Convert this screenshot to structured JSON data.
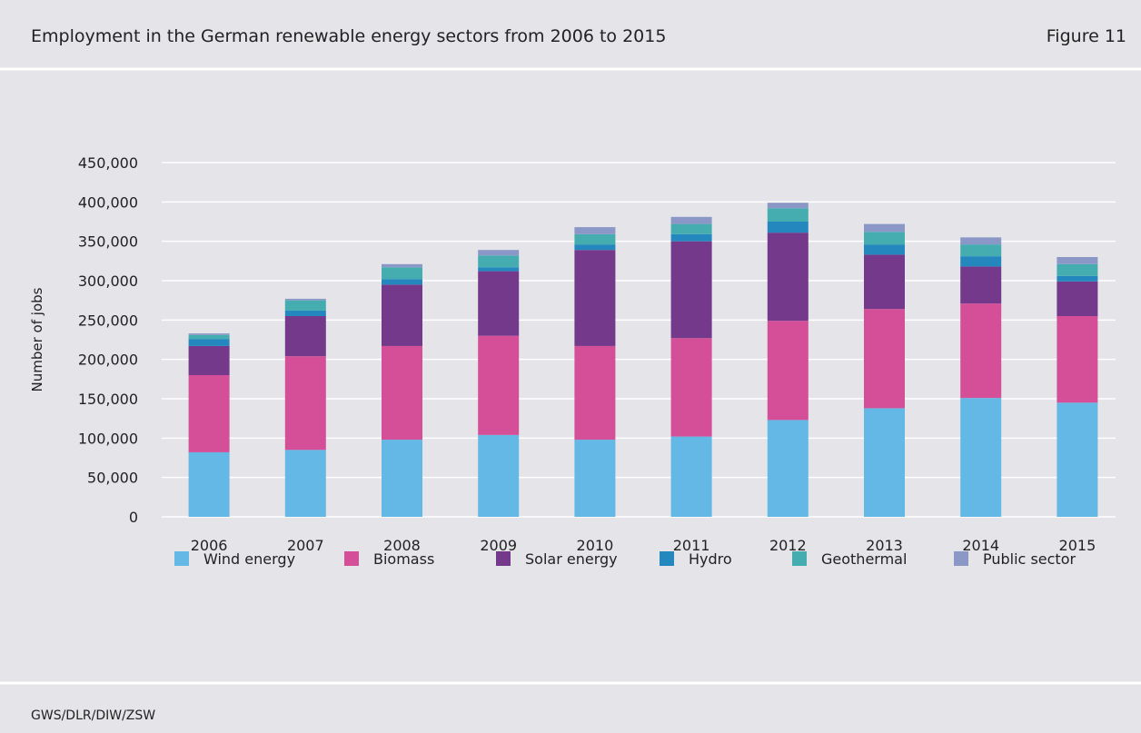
{
  "chart_data": {
    "type": "stacked-bar",
    "title": "Employment in the German renewable energy sectors from 2006 to 2015",
    "figure_label": "Figure 11",
    "source": "GWS/DLR/DIW/ZSW",
    "y_label": "Number of jobs",
    "categories": [
      "2006",
      "2007",
      "2008",
      "2009",
      "2010",
      "2011",
      "2012",
      "2013",
      "2014",
      "2015"
    ],
    "series": [
      {
        "name": "Wind energy",
        "color": "#64b8e6",
        "values": [
          82000,
          85000,
          98000,
          104000,
          98000,
          102000,
          123000,
          138000,
          151000,
          145000
        ]
      },
      {
        "name": "Biomass",
        "color": "#d44f98",
        "values": [
          98000,
          119000,
          119000,
          126000,
          119000,
          125000,
          126000,
          126000,
          120000,
          110000
        ]
      },
      {
        "name": "Solar energy",
        "color": "#74398a",
        "values": [
          37000,
          51000,
          78000,
          82000,
          122000,
          123000,
          112000,
          69000,
          47000,
          44000
        ]
      },
      {
        "name": "Hydro",
        "color": "#2488bf",
        "values": [
          9000,
          7000,
          7000,
          5000,
          7000,
          9000,
          14000,
          13000,
          13000,
          7000
        ]
      },
      {
        "name": "Geothermal",
        "color": "#45adb0",
        "values": [
          5000,
          13000,
          15000,
          15000,
          13000,
          13000,
          17000,
          16000,
          15000,
          15000
        ]
      },
      {
        "name": "Public sector",
        "color": "#8b98c7",
        "values": [
          2000,
          2000,
          4000,
          7000,
          9000,
          9000,
          7000,
          10000,
          9000,
          9000
        ]
      }
    ],
    "ylim": [
      0,
      450000
    ],
    "yticks": [
      0,
      {
        "value": 50000,
        "label": "50,000"
      },
      {
        "value": 100000,
        "label": "100,000"
      },
      {
        "value": 150000,
        "label": "150,000"
      },
      {
        "value": 200000,
        "label": "200,000"
      },
      {
        "value": 250000,
        "label": "250,000"
      },
      {
        "value": 300000,
        "label": "300,000"
      },
      {
        "value": 350000,
        "label": "350,000"
      },
      {
        "value": 400000,
        "label": "400,000"
      },
      {
        "value": 450000,
        "label": "450,000"
      }
    ],
    "grid": true,
    "legend": "bottom"
  }
}
